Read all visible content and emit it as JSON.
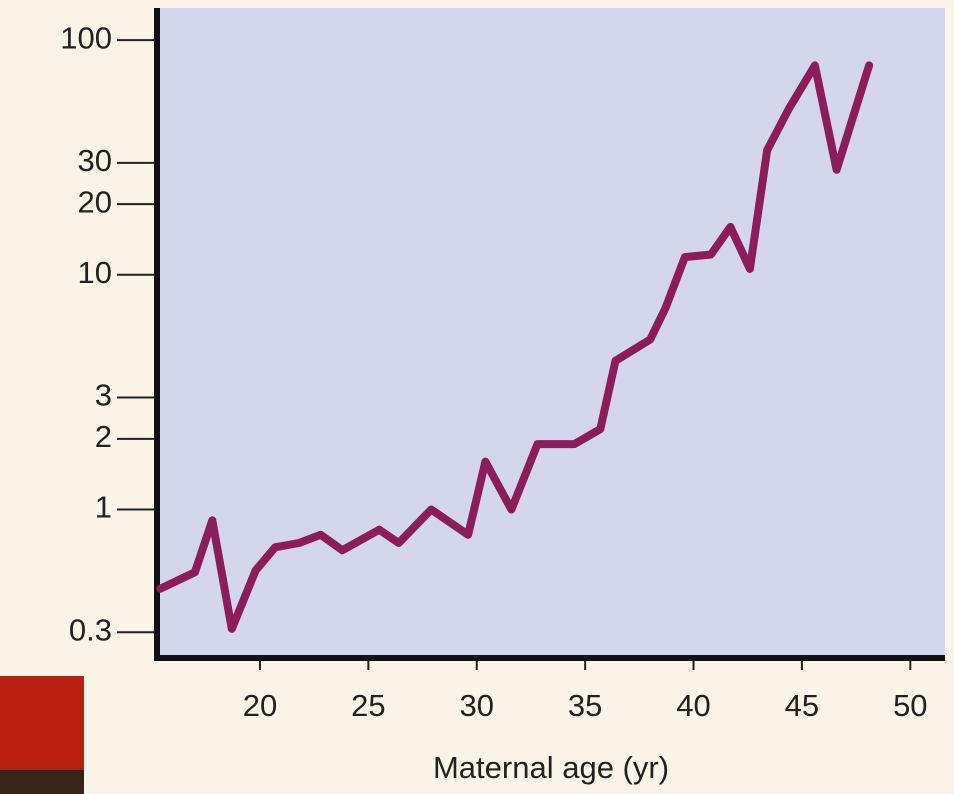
{
  "chart_data": {
    "type": "line",
    "x_label": "Maternal age (yr)",
    "x": [
      15.4,
      17,
      17.8,
      18.7,
      19.8,
      20.7,
      21.8,
      22.8,
      23.8,
      25.5,
      26.4,
      27.9,
      29.6,
      30.4,
      31.6,
      32.8,
      34.5,
      35.7,
      36.4,
      38.0,
      38.7,
      39.6,
      40.8,
      41.7,
      42.6,
      43.4,
      44.4,
      45.6,
      46.6,
      48.1
    ],
    "values": [
      0.46,
      0.54,
      0.9,
      0.31,
      0.55,
      0.69,
      0.72,
      0.78,
      0.67,
      0.82,
      0.72,
      1.0,
      0.78,
      1.6,
      1.0,
      1.9,
      1.9,
      2.2,
      4.3,
      5.3,
      7.2,
      11.9,
      12.2,
      16,
      10.6,
      34,
      51,
      78,
      28,
      78
    ],
    "color": "#8c1d5c",
    "xlim": [
      15.25,
      51.6
    ],
    "xticks": [
      20,
      25,
      30,
      35,
      40,
      45,
      50
    ],
    "ylim": [
      0.233,
      137
    ],
    "yticks": [
      0.3,
      1,
      2,
      3,
      10,
      20,
      30,
      100
    ],
    "y_log_scale": true
  }
}
